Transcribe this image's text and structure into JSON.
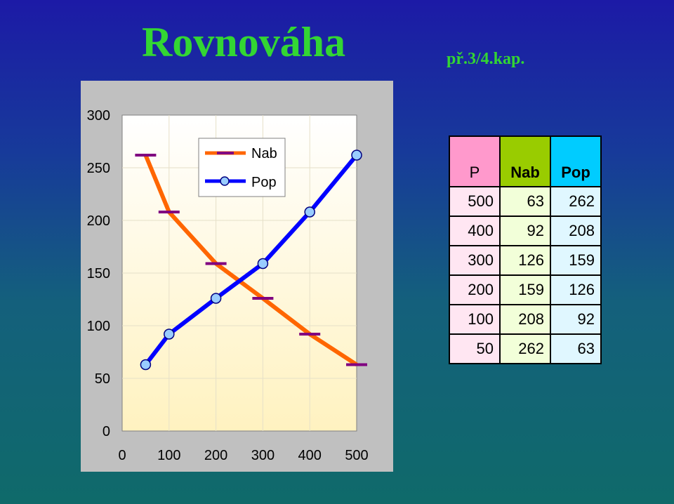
{
  "header": {
    "title": "Rovnováha",
    "subtitle": "př.3/4.kap."
  },
  "chart_data": {
    "type": "line",
    "x": [
      50,
      100,
      200,
      300,
      400,
      500
    ],
    "series": [
      {
        "name": "Nab",
        "values": [
          262,
          208,
          159,
          126,
          92,
          63
        ],
        "color": "#ff6600",
        "marker": "dash",
        "marker_color": "#800080"
      },
      {
        "name": "Pop",
        "values": [
          63,
          92,
          126,
          159,
          208,
          262
        ],
        "color": "#0000ff",
        "marker": "circle",
        "marker_color": "#99ccff"
      }
    ],
    "x_ticks": [
      "0",
      "100",
      "200",
      "300",
      "400",
      "500"
    ],
    "y_ticks": [
      "0",
      "50",
      "100",
      "150",
      "200",
      "250",
      "300"
    ],
    "xlim": [
      0,
      500
    ],
    "ylim": [
      0,
      300
    ],
    "grid": true,
    "legend": "top-left",
    "xlabel": "",
    "ylabel": ""
  },
  "table": {
    "headers": [
      "P",
      "Nab",
      "Pop"
    ],
    "rows": [
      [
        "500",
        "63",
        "262"
      ],
      [
        "400",
        "92",
        "208"
      ],
      [
        "300",
        "126",
        "159"
      ],
      [
        "200",
        "159",
        "126"
      ],
      [
        "100",
        "208",
        "92"
      ],
      [
        "50",
        "262",
        "63"
      ]
    ]
  }
}
